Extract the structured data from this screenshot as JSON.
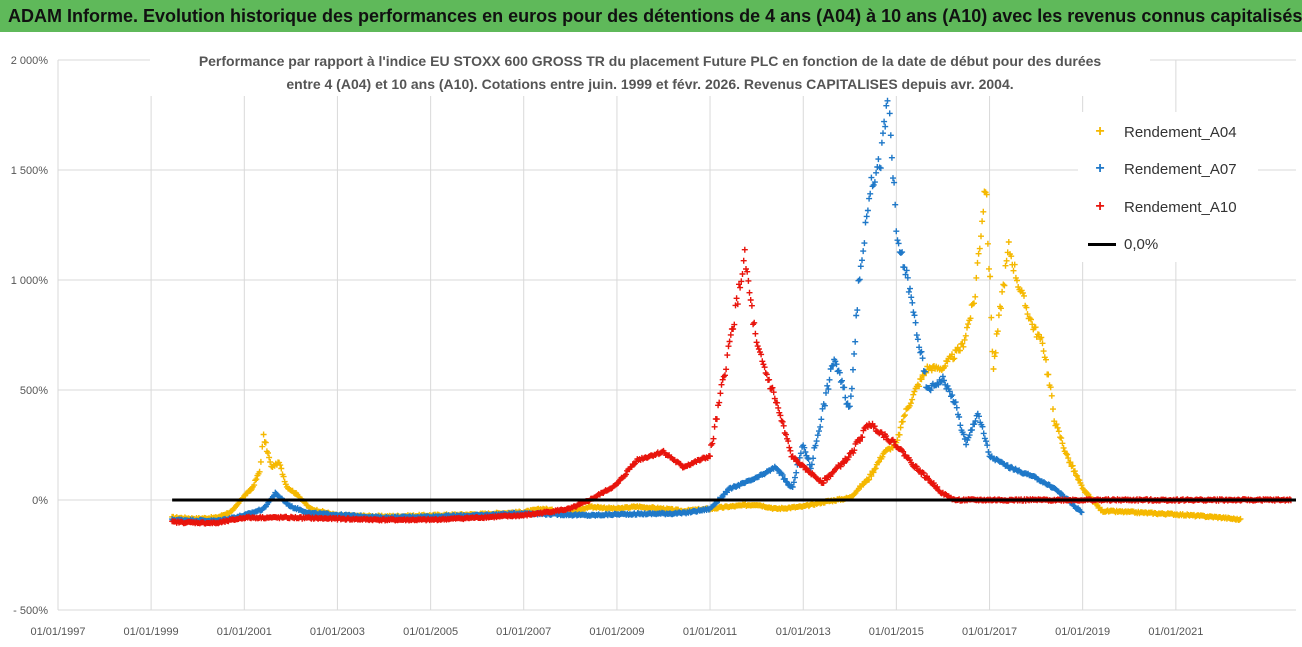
{
  "banner": {
    "title": "ADAM Informe. Evolution historique des performances en euros pour des détentions de 4 ans (A04) à 10 ans (A10) avec les revenus connus capitalisés"
  },
  "chart_data": {
    "type": "scatter",
    "title_line1": "Performance par rapport à l'indice EU STOXX 600 GROSS TR  du placement Future PLC en fonction de la date de début pour des durées",
    "title_line2": "entre 4 (A04) et 10 ans (A10). Cotations entre juin. 1999 et févr. 2026. Revenus CAPITALISES depuis avr. 2004.",
    "x_axis": {
      "type": "date",
      "min": "1997-01-01",
      "max": "2023-08-01",
      "tick_labels": [
        "01/01/1997",
        "01/01/1999",
        "01/01/2001",
        "01/01/2003",
        "01/01/2005",
        "01/01/2007",
        "01/01/2009",
        "01/01/2011",
        "01/01/2013",
        "01/01/2015",
        "01/01/2017",
        "01/01/2019",
        "01/01/2021"
      ],
      "grid": true
    },
    "y_axis": {
      "min": -500,
      "max": 2000,
      "unit": "%",
      "tick_values": [
        -500,
        0,
        500,
        1000,
        1500,
        2000
      ],
      "tick_labels": [
        "- 500%",
        "0%",
        "500%",
        "1 000%",
        "1 500%",
        "2 000%"
      ],
      "grid": true
    },
    "legend_position": "top-right",
    "series": [
      {
        "name": "Rendement_A04",
        "color": "#f5b800",
        "marker": "+",
        "points": [
          [
            "1999-06-15",
            -80
          ],
          [
            "2000-01-01",
            -85
          ],
          [
            "2000-06-01",
            -80
          ],
          [
            "2000-10-01",
            -50
          ],
          [
            "2001-01-01",
            20
          ],
          [
            "2001-03-01",
            50
          ],
          [
            "2001-05-01",
            130
          ],
          [
            "2001-06-01",
            290
          ],
          [
            "2001-08-01",
            150
          ],
          [
            "2001-10-01",
            170
          ],
          [
            "2001-12-01",
            60
          ],
          [
            "2002-03-01",
            20
          ],
          [
            "2002-06-01",
            -40
          ],
          [
            "2003-01-01",
            -70
          ],
          [
            "2004-01-01",
            -75
          ],
          [
            "2005-01-01",
            -70
          ],
          [
            "2006-01-01",
            -65
          ],
          [
            "2007-01-01",
            -55
          ],
          [
            "2007-06-01",
            -40
          ],
          [
            "2008-01-01",
            -60
          ],
          [
            "2008-06-01",
            -30
          ],
          [
            "2009-01-01",
            -40
          ],
          [
            "2009-06-01",
            -30
          ],
          [
            "2010-01-01",
            -40
          ],
          [
            "2010-06-01",
            -50
          ],
          [
            "2011-01-01",
            -40
          ],
          [
            "2011-06-01",
            -30
          ],
          [
            "2012-01-01",
            -20
          ],
          [
            "2012-06-01",
            -40
          ],
          [
            "2013-01-01",
            -30
          ],
          [
            "2013-06-01",
            -10
          ],
          [
            "2014-01-01",
            10
          ],
          [
            "2014-06-01",
            100
          ],
          [
            "2014-10-01",
            220
          ],
          [
            "2015-01-01",
            250
          ],
          [
            "2015-03-01",
            380
          ],
          [
            "2015-06-01",
            500
          ],
          [
            "2015-09-01",
            600
          ],
          [
            "2016-01-01",
            600
          ],
          [
            "2016-06-01",
            700
          ],
          [
            "2016-09-01",
            900
          ],
          [
            "2016-12-01",
            1450
          ],
          [
            "2017-02-01",
            600
          ],
          [
            "2017-04-01",
            900
          ],
          [
            "2017-06-01",
            1150
          ],
          [
            "2017-09-01",
            950
          ],
          [
            "2017-12-01",
            800
          ],
          [
            "2018-03-01",
            700
          ],
          [
            "2018-06-01",
            350
          ],
          [
            "2018-09-01",
            200
          ],
          [
            "2019-01-01",
            50
          ],
          [
            "2019-06-01",
            -50
          ],
          [
            "2020-01-01",
            -55
          ],
          [
            "2021-01-01",
            -65
          ],
          [
            "2022-01-01",
            -80
          ],
          [
            "2022-06-01",
            -90
          ]
        ]
      },
      {
        "name": "Rendement_A07",
        "color": "#1f78c8",
        "marker": "+",
        "points": [
          [
            "1999-06-15",
            -90
          ],
          [
            "2000-06-01",
            -95
          ],
          [
            "2001-01-01",
            -70
          ],
          [
            "2001-06-01",
            -40
          ],
          [
            "2001-09-01",
            30
          ],
          [
            "2002-01-01",
            -30
          ],
          [
            "2002-06-01",
            -60
          ],
          [
            "2004-01-01",
            -80
          ],
          [
            "2006-01-01",
            -70
          ],
          [
            "2007-01-01",
            -60
          ],
          [
            "2008-06-01",
            -70
          ],
          [
            "2009-01-01",
            -65
          ],
          [
            "2010-06-01",
            -60
          ],
          [
            "2011-01-01",
            -40
          ],
          [
            "2011-06-01",
            50
          ],
          [
            "2012-01-01",
            100
          ],
          [
            "2012-06-01",
            150
          ],
          [
            "2012-10-01",
            50
          ],
          [
            "2013-01-01",
            250
          ],
          [
            "2013-03-01",
            150
          ],
          [
            "2013-06-01",
            400
          ],
          [
            "2013-09-01",
            650
          ],
          [
            "2014-01-01",
            400
          ],
          [
            "2014-03-01",
            900
          ],
          [
            "2014-06-01",
            1400
          ],
          [
            "2014-09-01",
            1550
          ],
          [
            "2014-11-01",
            1850
          ],
          [
            "2015-01-01",
            1200
          ],
          [
            "2015-04-01",
            1000
          ],
          [
            "2015-06-01",
            800
          ],
          [
            "2015-09-01",
            500
          ],
          [
            "2016-01-01",
            550
          ],
          [
            "2016-04-01",
            450
          ],
          [
            "2016-07-01",
            250
          ],
          [
            "2016-10-01",
            400
          ],
          [
            "2017-01-01",
            200
          ],
          [
            "2017-06-01",
            150
          ],
          [
            "2018-01-01",
            100
          ],
          [
            "2018-06-01",
            50
          ],
          [
            "2019-01-01",
            -60
          ]
        ]
      },
      {
        "name": "Rendement_A10",
        "color": "#e8140c",
        "marker": "+",
        "points": [
          [
            "1999-06-15",
            -100
          ],
          [
            "2000-06-01",
            -105
          ],
          [
            "2001-01-01",
            -80
          ],
          [
            "2002-01-01",
            -80
          ],
          [
            "2003-01-01",
            -85
          ],
          [
            "2004-01-01",
            -90
          ],
          [
            "2005-01-01",
            -90
          ],
          [
            "2006-01-01",
            -80
          ],
          [
            "2007-01-01",
            -70
          ],
          [
            "2008-01-01",
            -40
          ],
          [
            "2008-06-01",
            0
          ],
          [
            "2009-01-01",
            70
          ],
          [
            "2009-06-01",
            180
          ],
          [
            "2010-01-01",
            220
          ],
          [
            "2010-06-01",
            150
          ],
          [
            "2011-01-01",
            200
          ],
          [
            "2011-04-01",
            500
          ],
          [
            "2011-07-01",
            800
          ],
          [
            "2011-10-01",
            1100
          ],
          [
            "2012-01-01",
            700
          ],
          [
            "2012-06-01",
            450
          ],
          [
            "2012-10-01",
            200
          ],
          [
            "2013-01-01",
            150
          ],
          [
            "2013-06-01",
            80
          ],
          [
            "2014-01-01",
            200
          ],
          [
            "2014-06-01",
            350
          ],
          [
            "2015-01-01",
            250
          ],
          [
            "2015-06-01",
            150
          ],
          [
            "2016-01-01",
            30
          ],
          [
            "2016-04-01",
            0
          ],
          [
            "2023-07-01",
            0
          ]
        ]
      }
    ],
    "reference_line": {
      "name": "0,0%",
      "color": "#000000",
      "y": 0,
      "x_start": "1999-06-15",
      "x_end": "2023-08-01"
    }
  }
}
